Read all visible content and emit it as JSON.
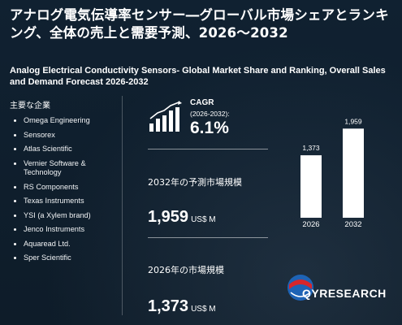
{
  "title_jp": "アナログ電気伝導率センサー―グローバル市場シェアとランキング、全体の売上と需要予測、2026～2032",
  "title_en": "Analog Electrical Conductivity Sensors- Global Market Share and Ranking, Overall Sales and Demand Forecast 2026-2032",
  "companies_title": "主要な企業",
  "companies": [
    "Omega Engineering",
    "Sensorex",
    "Atlas Scientific",
    "Vernier Software & Technology",
    "RS Components",
    "Texas Instruments",
    "YSI (a Xylem brand)",
    "Jenco Instruments",
    "Aquaread Ltd.",
    "Sper Scientific"
  ],
  "cagr": {
    "label": "CAGR",
    "sub": "(2026-2032):",
    "value": "6.1%",
    "icon": "bar-chart-growth-icon"
  },
  "market_2032": {
    "label": "2032年の予測市場規模",
    "value": "1,959",
    "unit": "US$ M"
  },
  "market_2026": {
    "label": "2026年の市場規模",
    "value": "1,373",
    "unit": "US$ M"
  },
  "chart_data": {
    "type": "bar",
    "categories": [
      "2026",
      "2032"
    ],
    "values": [
      1373,
      1959
    ],
    "value_labels": [
      "1,373",
      "1,959"
    ],
    "title": "",
    "xlabel": "",
    "ylabel": "",
    "grid": false,
    "colors": {
      "bar": "#ffffff",
      "bar_shade": "#e6e6e6"
    }
  },
  "brand": {
    "logo_text": "QYRESEARCH",
    "logo_icon": "globe-logo-icon",
    "colors": {
      "red": "#d7262b",
      "blue": "#1e63b5"
    }
  }
}
